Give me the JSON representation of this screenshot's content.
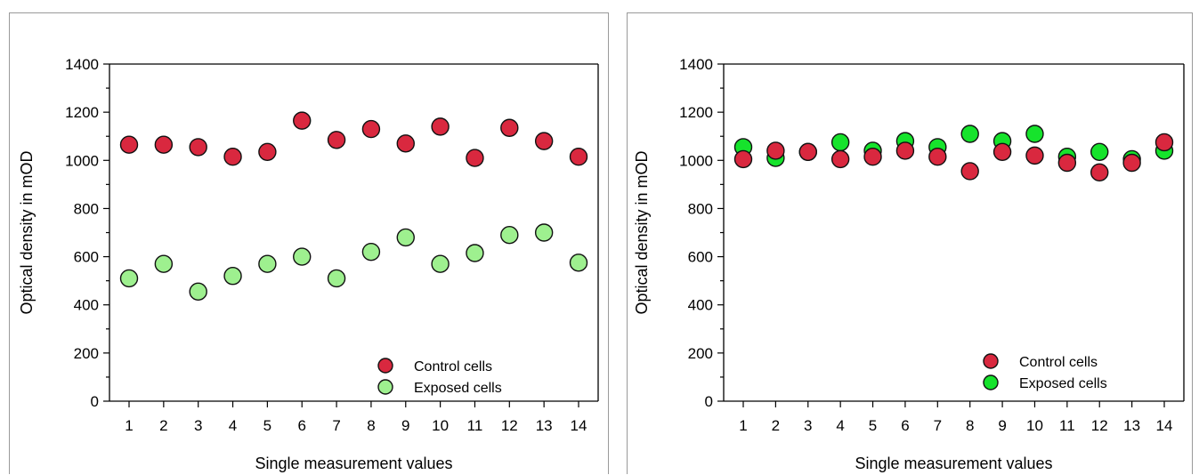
{
  "colors": {
    "control": "#d9283f",
    "exposed_left": "#9ef08f",
    "exposed_right": "#16e32c",
    "border": "#9a9a9a"
  },
  "chart_data": [
    {
      "type": "scatter",
      "xlabel": "Single measurement values",
      "ylabel": "Optical density in mOD",
      "x": [
        1,
        2,
        3,
        4,
        5,
        6,
        7,
        8,
        9,
        10,
        11,
        12,
        13,
        14
      ],
      "ylim": [
        0,
        1400
      ],
      "yticks": [
        0,
        200,
        400,
        600,
        800,
        1000,
        1200,
        1400
      ],
      "legend_position": "bottom-right",
      "grid": false,
      "series": [
        {
          "name": "Control cells",
          "color_key": "control",
          "values": [
            1065,
            1065,
            1055,
            1015,
            1035,
            1165,
            1085,
            1130,
            1070,
            1140,
            1010,
            1135,
            1080,
            1015
          ]
        },
        {
          "name": "Exposed cells",
          "color_key": "exposed_left",
          "values": [
            510,
            570,
            455,
            520,
            570,
            600,
            510,
            620,
            680,
            570,
            615,
            690,
            700,
            575
          ]
        }
      ]
    },
    {
      "type": "scatter",
      "xlabel": "Single measurement values",
      "ylabel": "Optical density in mOD",
      "x": [
        1,
        2,
        3,
        4,
        5,
        6,
        7,
        8,
        9,
        10,
        11,
        12,
        13,
        14
      ],
      "ylim": [
        0,
        1400
      ],
      "yticks": [
        0,
        200,
        400,
        600,
        800,
        1000,
        1200,
        1400
      ],
      "legend_position": "bottom-right",
      "grid": false,
      "series": [
        {
          "name": "Exposed cells",
          "color_key": "exposed_right",
          "values": [
            1055,
            1010,
            1035,
            1075,
            1040,
            1080,
            1055,
            1110,
            1080,
            1110,
            1015,
            1035,
            1005,
            1040
          ]
        },
        {
          "name": "Control cells",
          "color_key": "control",
          "values": [
            1005,
            1040,
            1035,
            1005,
            1015,
            1040,
            1015,
            955,
            1035,
            1020,
            990,
            950,
            990,
            1075
          ]
        }
      ]
    }
  ],
  "legends": [
    {
      "items": [
        {
          "label": "Control cells",
          "color_key": "control"
        },
        {
          "label": "Exposed cells",
          "color_key": "exposed_left"
        }
      ]
    },
    {
      "items": [
        {
          "label": "Control cells",
          "color_key": "control"
        },
        {
          "label": "Exposed cells",
          "color_key": "exposed_right"
        }
      ]
    }
  ]
}
